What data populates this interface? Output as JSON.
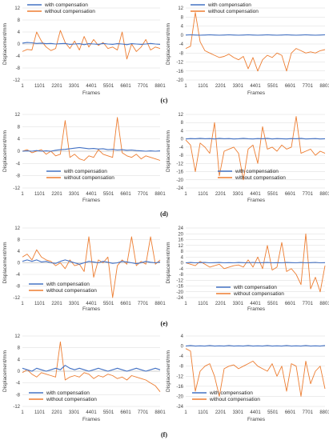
{
  "colors": {
    "with": "#4472C4",
    "without": "#ED7D31",
    "grid": "#d9d9d9",
    "axis": "#bfbfbf"
  },
  "row_labels": [
    "(c)",
    "(d)",
    "(e)",
    "(f)"
  ],
  "chart_data": [
    {
      "type": "line",
      "xlabel": "Frames",
      "ylabel": "Displacement/mm",
      "x_ticks": [
        "1",
        "1101",
        "2201",
        "3301",
        "4401",
        "5501",
        "6601",
        "7701",
        "8801"
      ],
      "ylim": [
        -12,
        12
      ],
      "y_ticks": [
        -12,
        -8,
        -4,
        0,
        4,
        8,
        12
      ],
      "legend_position": "top-left",
      "series": [
        {
          "name": "with compensation",
          "values": [
            0.3,
            0.5,
            0.4,
            0.2,
            0.3,
            0.1,
            0.2,
            0.0,
            0.1,
            0.2,
            -0.1,
            0.0,
            0.1,
            -0.2,
            0.1,
            0.0,
            -0.1,
            0.2,
            0.0,
            -0.1,
            0.1,
            0.0,
            -0.2,
            0.1,
            0.0,
            -0.1,
            0.0,
            0.2,
            0.0,
            -0.1
          ]
        },
        {
          "name": "without compensation",
          "values": [
            -2.5,
            -1.8,
            -2.0,
            4.0,
            1.0,
            -1.0,
            -2.2,
            -1.5,
            4.5,
            0.5,
            -1.5,
            1.0,
            -2.0,
            2.5,
            -1.0,
            1.5,
            -0.5,
            0.5,
            -1.5,
            -1.0,
            -2.0,
            4.0,
            -5.0,
            0.0,
            -2.5,
            -1.0,
            1.5,
            -2.0,
            -1.0,
            -1.5
          ]
        }
      ]
    },
    {
      "type": "line",
      "xlabel": "Frames",
      "ylabel": "Displacement/mm",
      "x_ticks": [
        "1",
        "1101",
        "2201",
        "3301",
        "4401",
        "5501",
        "6601",
        "7701",
        "8801"
      ],
      "ylim": [
        -20,
        12
      ],
      "y_ticks": [
        -20,
        -16,
        -12,
        -8,
        -4,
        0,
        4,
        8,
        12
      ],
      "legend_position": "top-left",
      "series": [
        {
          "name": "with compensation",
          "values": [
            0.0,
            0.1,
            0.0,
            -0.1,
            0.0,
            0.1,
            0.0,
            -0.1,
            0.0,
            0.1,
            0.0,
            -0.1,
            0.0,
            0.1,
            0.0,
            -0.1,
            0.0,
            0.1,
            0.0,
            -0.1,
            0.0,
            0.1,
            0.0,
            -0.1,
            0.0,
            0.1,
            0.0,
            -0.1,
            0.0,
            0.1
          ]
        },
        {
          "name": "without compensation",
          "values": [
            -6.0,
            -5.0,
            10.0,
            -3.0,
            -7.0,
            -8.0,
            -9.0,
            -10.0,
            -9.5,
            -8.5,
            -10.0,
            -11.0,
            -9.5,
            -15.0,
            -10.0,
            -16.0,
            -11.0,
            -9.0,
            -10.0,
            -8.0,
            -9.0,
            -16.0,
            -8.0,
            -6.0,
            -7.0,
            -8.0,
            -7.5,
            -8.0,
            -7.0,
            -6.5
          ]
        }
      ]
    },
    {
      "type": "line",
      "xlabel": "Frames",
      "ylabel": "Displacement/mm",
      "x_ticks": [
        "1",
        "1101",
        "2201",
        "3301",
        "4401",
        "5501",
        "6601",
        "7701",
        "8801"
      ],
      "ylim": [
        -12,
        12
      ],
      "y_ticks": [
        -12,
        -8,
        -4,
        0,
        4,
        8,
        12
      ],
      "legend_position": "bottom-center",
      "series": [
        {
          "name": "with compensation",
          "values": [
            0.0,
            0.1,
            0.0,
            0.2,
            0.0,
            0.1,
            0.0,
            0.3,
            0.5,
            0.6,
            0.8,
            1.0,
            1.2,
            1.0,
            0.8,
            0.9,
            0.7,
            0.8,
            0.5,
            0.6,
            0.4,
            0.5,
            0.3,
            0.4,
            0.2,
            0.1,
            0.0,
            0.1,
            0.0,
            0.1
          ]
        },
        {
          "name": "without compensation",
          "values": [
            0.0,
            0.5,
            -0.5,
            0.0,
            0.5,
            -1.0,
            0.0,
            -1.5,
            -1.0,
            10.0,
            -2.0,
            -1.0,
            -2.5,
            -3.0,
            -1.5,
            -2.0,
            0.5,
            -1.0,
            -1.5,
            -2.0,
            11.0,
            -0.5,
            -1.5,
            -2.0,
            -1.0,
            -2.5,
            -1.5,
            -2.0,
            -2.5,
            -3.0
          ]
        }
      ]
    },
    {
      "type": "line",
      "xlabel": "Frames",
      "ylabel": "Displacement/mm",
      "x_ticks": [
        "1",
        "1101",
        "2201",
        "3301",
        "4401",
        "5501",
        "6601",
        "7701",
        "8801"
      ],
      "ylim": [
        -24,
        12
      ],
      "y_ticks": [
        -24,
        -20,
        -16,
        -12,
        -8,
        -4,
        0,
        4,
        8,
        12
      ],
      "legend_position": "bottom-center",
      "series": [
        {
          "name": "with compensation",
          "values": [
            0.0,
            0.2,
            0.1,
            0.3,
            0.1,
            0.2,
            0.0,
            0.3,
            0.1,
            0.2,
            0.0,
            0.1,
            0.3,
            0.1,
            0.0,
            0.2,
            0.1,
            0.3,
            0.0,
            0.2,
            0.1,
            0.0,
            0.2,
            0.1,
            0.3,
            0.0,
            0.1,
            0.2,
            0.0,
            0.1
          ]
        },
        {
          "name": "without compensation",
          "values": [
            -0.5,
            -3.0,
            -16.0,
            -2.0,
            -4.0,
            -7.0,
            8.0,
            -18.0,
            -6.0,
            -5.0,
            -4.0,
            -7.0,
            -20.0,
            -5.0,
            -3.0,
            -12.0,
            6.0,
            -5.0,
            -4.0,
            -6.0,
            -3.0,
            -5.0,
            -4.0,
            11.0,
            -7.0,
            -6.0,
            -5.0,
            -8.0,
            -6.0,
            -7.0
          ]
        }
      ]
    },
    {
      "type": "line",
      "xlabel": "Frames",
      "ylabel": "Displacement/mm",
      "x_ticks": [
        "1",
        "1101",
        "2201",
        "3301",
        "4401",
        "5501",
        "6601",
        "7701",
        "8801"
      ],
      "ylim": [
        -12,
        12
      ],
      "y_ticks": [
        -12,
        -8,
        -4,
        0,
        4,
        8,
        12
      ],
      "legend_position": "bottom-left",
      "series": [
        {
          "name": "with compensation",
          "values": [
            0.5,
            1.0,
            0.5,
            1.0,
            0.3,
            0.5,
            0.0,
            -0.2,
            0.5,
            1.0,
            0.5,
            0.0,
            -0.5,
            0.0,
            0.5,
            0.3,
            0.0,
            0.5,
            0.2,
            -0.2,
            0.0,
            0.5,
            0.3,
            0.0,
            -0.3,
            0.0,
            0.5,
            0.2,
            0.0,
            0.3
          ]
        },
        {
          "name": "without compensation",
          "values": [
            2.0,
            3.0,
            1.0,
            4.5,
            2.0,
            1.0,
            0.5,
            -1.0,
            0.0,
            -2.0,
            1.0,
            -1.0,
            -0.5,
            -3.0,
            9.0,
            -5.0,
            1.0,
            0.0,
            2.0,
            -12.0,
            -1.0,
            1.0,
            -0.5,
            9.0,
            -1.0,
            0.5,
            -0.5,
            9.0,
            -0.5,
            1.0
          ]
        }
      ]
    },
    {
      "type": "line",
      "xlabel": "Frames",
      "ylabel": "Displacement/mm",
      "x_ticks": [
        "1",
        "1101",
        "2201",
        "3301",
        "4401",
        "5501",
        "6601",
        "7701",
        "8801"
      ],
      "ylim": [
        -24,
        24
      ],
      "y_ticks": [
        -24,
        -20,
        -16,
        -12,
        -8,
        -4,
        0,
        4,
        8,
        12,
        16,
        20,
        24
      ],
      "legend_position": "bottom-center",
      "series": [
        {
          "name": "with compensation",
          "values": [
            0.0,
            0.2,
            0.0,
            0.1,
            0.3,
            0.0,
            0.1,
            0.2,
            0.0,
            0.1,
            0.0,
            0.2,
            0.1,
            0.0,
            0.3,
            0.0,
            0.1,
            0.2,
            0.0,
            0.1,
            0.0,
            0.2,
            0.1,
            0.0,
            0.2,
            0.0,
            0.1,
            0.3,
            0.0,
            0.1
          ]
        },
        {
          "name": "without compensation",
          "values": [
            0.0,
            -1.0,
            -2.0,
            1.0,
            -1.0,
            -3.0,
            -2.0,
            -1.0,
            -4.0,
            -3.0,
            -2.0,
            -1.5,
            -3.0,
            2.0,
            -3.0,
            4.0,
            -4.0,
            12.0,
            -5.0,
            -3.0,
            14.0,
            -6.0,
            -4.0,
            -8.0,
            -15.0,
            20.0,
            -18.0,
            -10.0,
            -20.0,
            -2.0
          ]
        }
      ]
    },
    {
      "type": "line",
      "xlabel": "Frames",
      "ylabel": "Displacement/mm",
      "x_ticks": [
        "1",
        "1101",
        "2201",
        "3301",
        "4401",
        "5501",
        "6601",
        "7701",
        "8801"
      ],
      "ylim": [
        -12,
        12
      ],
      "y_ticks": [
        -12,
        -8,
        -4,
        0,
        4,
        8,
        12
      ],
      "legend_position": "bottom-left",
      "series": [
        {
          "name": "with compensation",
          "values": [
            1.0,
            0.5,
            0.0,
            1.0,
            0.5,
            0.0,
            0.5,
            1.0,
            0.5,
            2.0,
            1.0,
            0.5,
            1.0,
            0.5,
            0.0,
            0.5,
            1.0,
            0.5,
            0.0,
            0.5,
            1.0,
            0.5,
            0.0,
            0.5,
            1.0,
            0.5,
            0.0,
            0.5,
            1.0,
            0.5
          ]
        },
        {
          "name": "without compensation",
          "values": [
            -0.5,
            0.5,
            -1.0,
            -2.0,
            -0.5,
            -1.0,
            -1.5,
            -2.0,
            10.0,
            -3.0,
            -2.0,
            -1.5,
            -2.0,
            -0.5,
            -1.0,
            -2.5,
            -1.5,
            -2.0,
            -1.0,
            -1.5,
            -2.5,
            -2.0,
            -3.0,
            -1.5,
            -2.0,
            -2.5,
            -3.0,
            -4.0,
            -5.0,
            -7.0
          ]
        }
      ]
    },
    {
      "type": "line",
      "xlabel": "Frames",
      "ylabel": "Displacement/mm",
      "x_ticks": [
        "1",
        "1101",
        "2201",
        "3301",
        "4401",
        "5501",
        "6601",
        "7701",
        "8801"
      ],
      "ylim": [
        -24,
        4
      ],
      "y_ticks": [
        -24,
        -20,
        -16,
        -12,
        -8,
        -4,
        0,
        4
      ],
      "legend_position": "bottom-left",
      "series": [
        {
          "name": "with compensation",
          "values": [
            0.0,
            0.2,
            0.0,
            0.1,
            0.0,
            0.2,
            0.0,
            0.1,
            0.0,
            0.2,
            0.0,
            0.1,
            0.0,
            0.2,
            0.0,
            0.1,
            0.0,
            0.2,
            0.0,
            0.1,
            0.0,
            0.2,
            0.0,
            0.1,
            0.0,
            0.2,
            0.0,
            0.1,
            0.0,
            0.2
          ]
        },
        {
          "name": "without compensation",
          "values": [
            -1.0,
            -2.0,
            -18.0,
            -10.0,
            -8.0,
            -7.0,
            -12.0,
            -20.0,
            -9.0,
            -8.0,
            -7.5,
            -9.0,
            -8.0,
            -7.0,
            -6.0,
            -8.0,
            -9.0,
            -10.0,
            -7.0,
            -12.0,
            -8.0,
            -18.0,
            -7.0,
            -8.0,
            -20.0,
            -6.0,
            -15.0,
            -10.0,
            -8.0,
            -17.0
          ]
        }
      ]
    }
  ]
}
